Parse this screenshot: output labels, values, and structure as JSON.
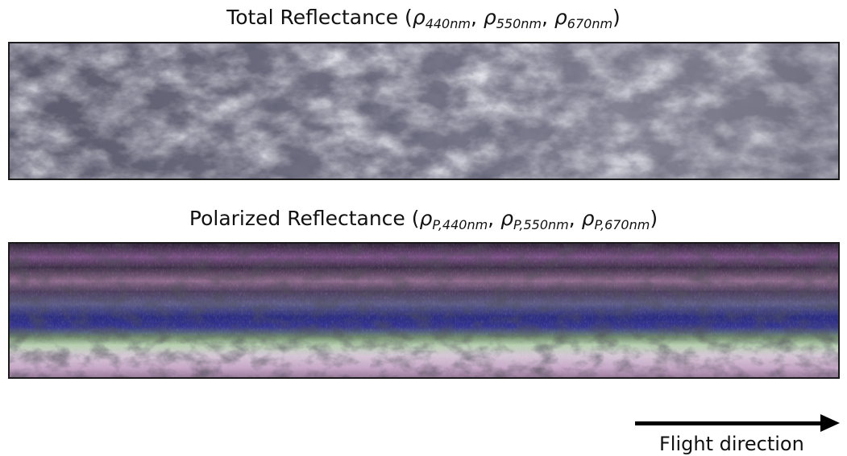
{
  "total_title": {
    "prefix": "Total Reflectance (",
    "symbol": "ρ",
    "sub1": "440nm",
    "sub2": "550nm",
    "sub3": "670nm",
    "sep": ", ",
    "suffix": ")"
  },
  "polarized_title": {
    "prefix": "Polarized Reflectance (",
    "symbol": "ρ",
    "sub1": "P,440nm",
    "sub2": "P,550nm",
    "sub3": "P,670nm",
    "sep": ", ",
    "suffix": ")"
  },
  "flight_direction_label": "Flight direction",
  "icons": {
    "flight_arrow": "right-arrow-icon"
  },
  "colors": {
    "total_image_tint": "#6f6f82",
    "polarized_magenta": "#8a5a8e",
    "polarized_blue": "#2a2d8a",
    "polarized_green": "#9fc89a"
  }
}
